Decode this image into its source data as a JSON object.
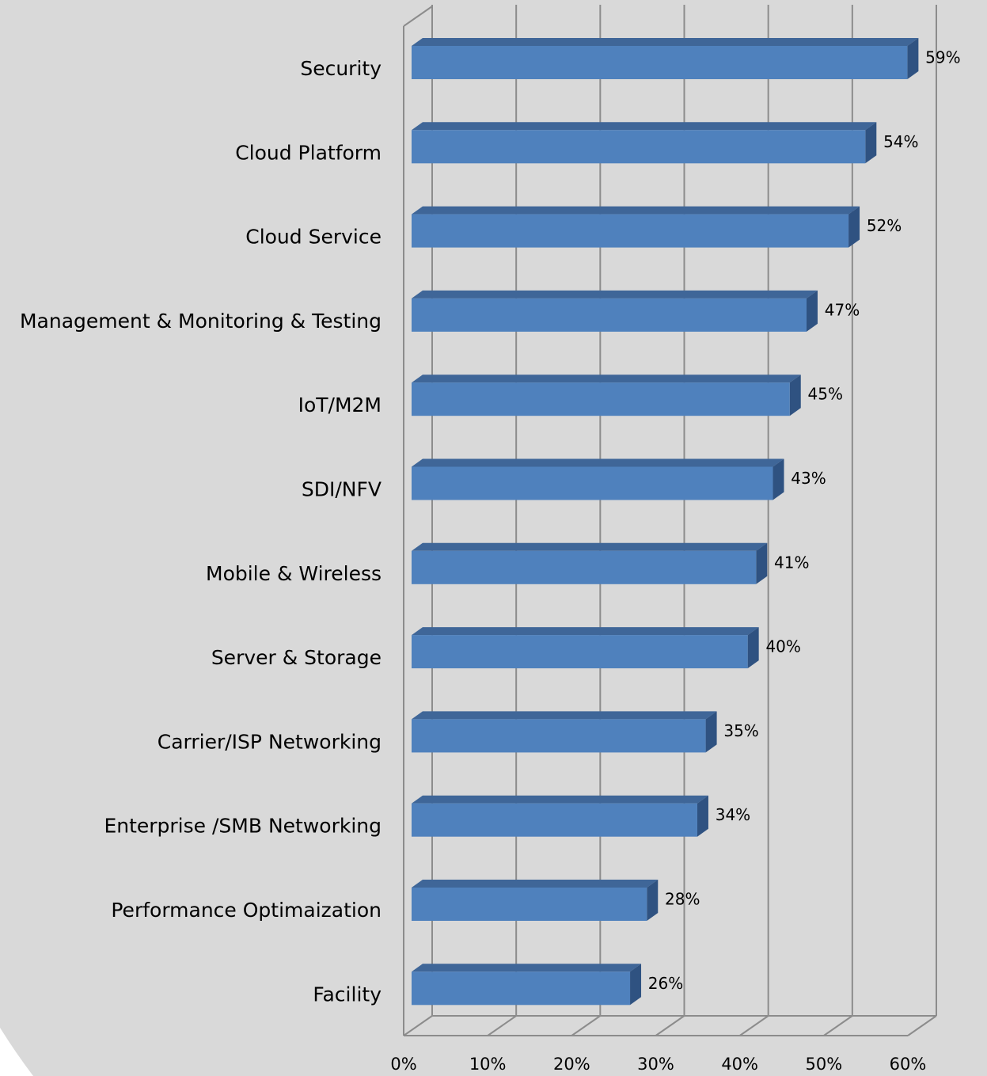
{
  "chart_data": {
    "type": "bar3d_horizontal",
    "categories": [
      "Security",
      "Cloud Platform",
      "Cloud Service",
      "Management & Monitoring & Testing",
      "IoT/M2M",
      "SDI/NFV",
      "Mobile & Wireless",
      "Server & Storage",
      "Carrier/ISP Networking",
      "Enterprise /SMB Networking",
      "Performance Optimaization",
      "Facility"
    ],
    "values": [
      59,
      54,
      52,
      47,
      45,
      43,
      41,
      40,
      35,
      34,
      28,
      26
    ],
    "value_labels": [
      "59%",
      "54%",
      "52%",
      "47%",
      "45%",
      "43%",
      "41%",
      "40%",
      "35%",
      "34%",
      "28%",
      "26%"
    ],
    "color": "#4f81bd",
    "xlim": [
      0,
      60
    ],
    "xticks": [
      {
        "value": 0,
        "label": "0%"
      },
      {
        "value": 10,
        "label": "10%"
      },
      {
        "value": 20,
        "label": "20%"
      },
      {
        "value": 30,
        "label": "30%"
      },
      {
        "value": 40,
        "label": "40%"
      },
      {
        "value": 50,
        "label": "50%"
      },
      {
        "value": 60,
        "label": "60%"
      }
    ],
    "grid": true
  }
}
